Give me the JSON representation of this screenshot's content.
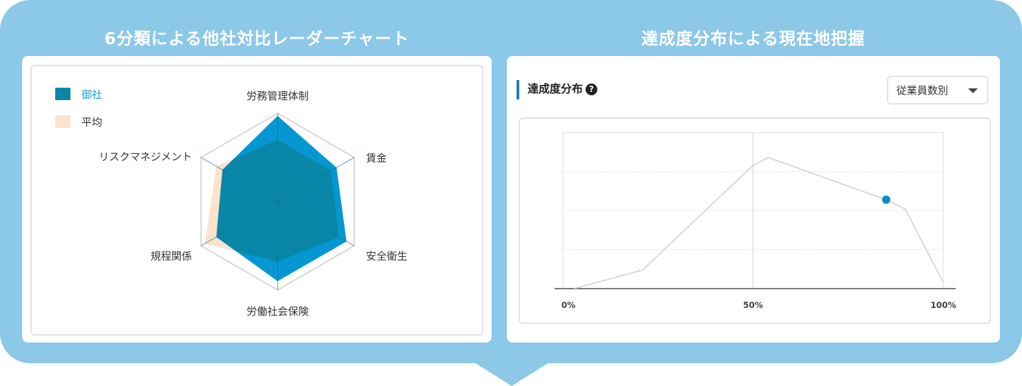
{
  "headings": {
    "left": "6分類による他社対比レーダーチャート",
    "right": "達成度分布による現在地把握"
  },
  "colors": {
    "company": "#0597d2",
    "overlap": "#0a87a8",
    "average": "#fbe3cc",
    "accent": "#1a7fa8",
    "background": "#8cc8e8"
  },
  "chart_data": [
    {
      "type": "radar",
      "axes": [
        "労務管理体制",
        "賃金",
        "安全衛生",
        "労働社会保険",
        "規程関係",
        "リスクマネジメント"
      ],
      "range": [
        0,
        1
      ],
      "legend_position": "top-left",
      "series": [
        {
          "name": "御社",
          "values": [
            0.97,
            0.77,
            0.9,
            0.9,
            0.8,
            0.72
          ]
        },
        {
          "name": "平均",
          "values": [
            0.7,
            0.7,
            0.8,
            0.68,
            0.95,
            0.8
          ]
        }
      ]
    },
    {
      "type": "line",
      "title": "達成度分布",
      "xlim": [
        0,
        100
      ],
      "ylim": [
        0,
        1
      ],
      "x_ticks": [
        "0%",
        "50%",
        "100%"
      ],
      "grid": true,
      "x": [
        3,
        21,
        50,
        54,
        85,
        90,
        100
      ],
      "y": [
        0,
        0.12,
        0.79,
        0.84,
        0.57,
        0.51,
        0.04
      ],
      "marker": {
        "x": 85,
        "y": 0.57
      }
    }
  ],
  "dropdown": {
    "selected": "従業員数別",
    "icon": "caret-down-icon"
  },
  "help_icon": "question-circle-icon"
}
